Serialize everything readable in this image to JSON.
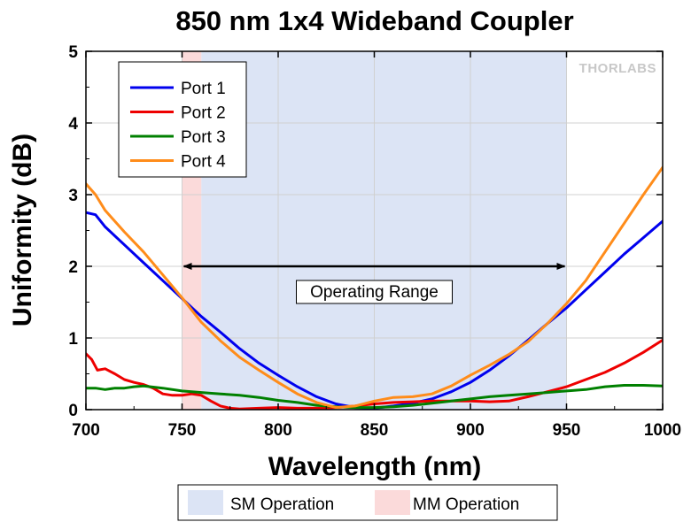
{
  "chart_data": {
    "type": "line",
    "title": "850 nm 1x4 Wideband Coupler",
    "xlabel": "Wavelength (nm)",
    "ylabel": "Uniformity (dB)",
    "xlim": [
      700,
      1000
    ],
    "ylim": [
      0,
      5
    ],
    "xticks": [
      700,
      750,
      800,
      850,
      900,
      950,
      1000
    ],
    "yticks": [
      0,
      1,
      2,
      3,
      4,
      5
    ],
    "grid": true,
    "legend_position": "top-left",
    "series": [
      {
        "name": "Port 1",
        "color": "#0000ee",
        "x": [
          700,
          705,
          710,
          720,
          730,
          740,
          750,
          760,
          770,
          780,
          790,
          800,
          810,
          820,
          830,
          840,
          850,
          860,
          870,
          880,
          890,
          900,
          910,
          920,
          930,
          940,
          950,
          960,
          970,
          980,
          990,
          1000
        ],
        "y": [
          2.75,
          2.72,
          2.55,
          2.3,
          2.05,
          1.8,
          1.55,
          1.3,
          1.08,
          0.85,
          0.65,
          0.48,
          0.32,
          0.18,
          0.08,
          0.03,
          0.02,
          0.05,
          0.09,
          0.15,
          0.25,
          0.38,
          0.55,
          0.75,
          0.97,
          1.2,
          1.42,
          1.67,
          1.92,
          2.17,
          2.4,
          2.63
        ]
      },
      {
        "name": "Port 2",
        "color": "#ee0000",
        "x": [
          700,
          703,
          706,
          710,
          715,
          720,
          725,
          730,
          735,
          740,
          745,
          750,
          755,
          760,
          765,
          770,
          775,
          780,
          790,
          800,
          810,
          820,
          830,
          840,
          850,
          860,
          870,
          880,
          890,
          900,
          910,
          920,
          930,
          940,
          950,
          960,
          970,
          980,
          990,
          1000
        ],
        "y": [
          0.78,
          0.7,
          0.55,
          0.57,
          0.5,
          0.42,
          0.38,
          0.35,
          0.3,
          0.22,
          0.2,
          0.2,
          0.22,
          0.2,
          0.12,
          0.05,
          0.02,
          0.01,
          0.02,
          0.03,
          0.02,
          0.02,
          0.03,
          0.05,
          0.08,
          0.1,
          0.11,
          0.12,
          0.12,
          0.12,
          0.11,
          0.12,
          0.18,
          0.25,
          0.32,
          0.42,
          0.52,
          0.65,
          0.8,
          0.97
        ]
      },
      {
        "name": "Port 3",
        "color": "#008000",
        "x": [
          700,
          705,
          710,
          715,
          720,
          725,
          730,
          740,
          750,
          760,
          770,
          780,
          790,
          800,
          810,
          820,
          830,
          840,
          850,
          860,
          870,
          880,
          890,
          900,
          910,
          920,
          930,
          940,
          950,
          960,
          970,
          980,
          990,
          1000
        ],
        "y": [
          0.3,
          0.3,
          0.28,
          0.3,
          0.3,
          0.32,
          0.33,
          0.3,
          0.26,
          0.24,
          0.22,
          0.2,
          0.17,
          0.13,
          0.1,
          0.06,
          0.04,
          0.03,
          0.03,
          0.04,
          0.06,
          0.09,
          0.12,
          0.15,
          0.18,
          0.2,
          0.22,
          0.24,
          0.26,
          0.28,
          0.32,
          0.34,
          0.34,
          0.33
        ]
      },
      {
        "name": "Port 4",
        "color": "#ff8c1a",
        "x": [
          700,
          705,
          710,
          720,
          730,
          740,
          750,
          760,
          770,
          780,
          790,
          800,
          810,
          820,
          830,
          840,
          850,
          860,
          870,
          880,
          890,
          900,
          910,
          920,
          930,
          940,
          950,
          960,
          970,
          980,
          990,
          1000
        ],
        "y": [
          3.15,
          3.0,
          2.78,
          2.48,
          2.2,
          1.88,
          1.56,
          1.22,
          0.96,
          0.73,
          0.55,
          0.38,
          0.22,
          0.1,
          0.03,
          0.05,
          0.12,
          0.17,
          0.18,
          0.22,
          0.33,
          0.48,
          0.62,
          0.77,
          0.95,
          1.2,
          1.48,
          1.8,
          2.2,
          2.6,
          3.0,
          3.38
        ]
      }
    ],
    "regions": [
      {
        "name": "SM Operation",
        "x": [
          760,
          950
        ],
        "color": "#dce4f5"
      },
      {
        "name": "MM Operation",
        "x": [
          750,
          760
        ],
        "color": "#fbdada"
      }
    ],
    "annotations": [
      {
        "text": "Operating Range",
        "arrow_x": [
          750,
          950
        ],
        "arrow_y": 2.0
      }
    ],
    "brand": "THORLABS"
  }
}
